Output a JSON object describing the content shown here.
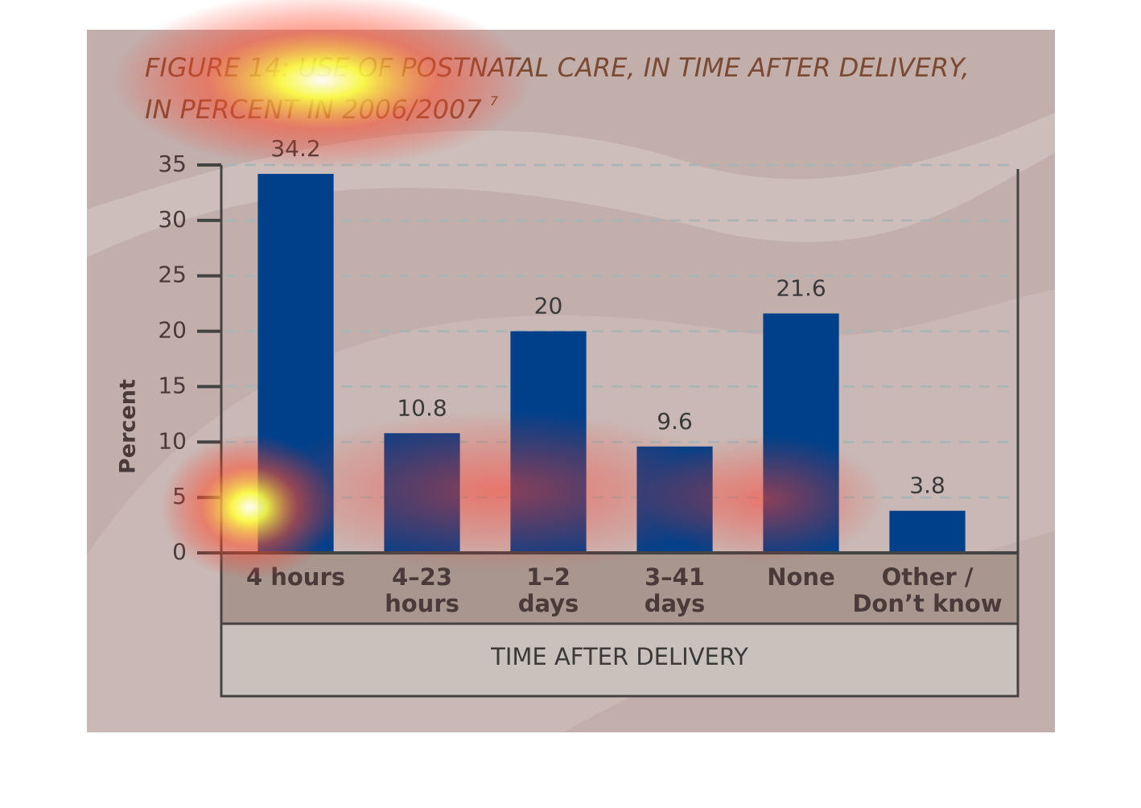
{
  "chart_data": {
    "type": "bar",
    "title": [
      "FIGURE 14: USE OF POSTNATAL CARE, IN TIME AFTER DELIVERY,",
      "IN PERCENT IN 2006/2007"
    ],
    "footnote": "7",
    "y_label": "Percent",
    "x_label": "TIME AFTER DELIVERY",
    "categories": [
      [
        "4 hours"
      ],
      [
        "4–23",
        "hours"
      ],
      [
        "1–2",
        "days"
      ],
      [
        "3–41",
        "days"
      ],
      [
        "None"
      ],
      [
        "Other /",
        "Don’t know"
      ]
    ],
    "values": [
      34.2,
      10.8,
      20,
      9.6,
      21.6,
      3.8
    ],
    "color": "#00408a",
    "ylim": [
      0,
      35
    ],
    "yticks": [
      0,
      5,
      10,
      15,
      20,
      25,
      30,
      35
    ],
    "grid": true
  }
}
